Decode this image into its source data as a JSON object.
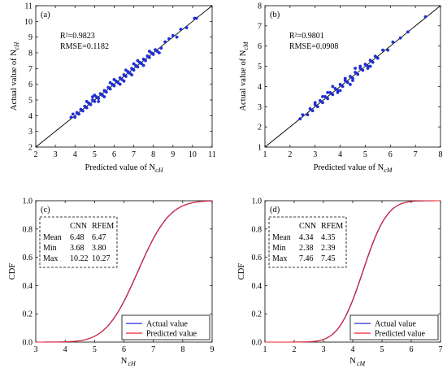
{
  "chart_data": [
    {
      "type": "scatter",
      "panel_label": "(a)",
      "xlabel": "Predicted value of N",
      "xlabel_sub": "cH",
      "ylabel": "Actual value of N",
      "ylabel_sub": "cH",
      "xlim": [
        2,
        11
      ],
      "ylim": [
        2,
        11
      ],
      "xticks": [
        "2",
        "3",
        "4",
        "5",
        "6",
        "7",
        "8",
        "9",
        "10",
        "11"
      ],
      "yticks": [
        "2",
        "3",
        "4",
        "5",
        "6",
        "7",
        "8",
        "9",
        "10",
        "11"
      ],
      "stats": [
        "R²=0.9823",
        "RMSE=0.1182"
      ],
      "reference_line": "y = x",
      "point_color": "#1f2fd6",
      "points": [
        [
          3.8,
          3.9
        ],
        [
          3.9,
          4.1
        ],
        [
          4.0,
          3.9
        ],
        [
          4.1,
          4.2
        ],
        [
          4.2,
          4.1
        ],
        [
          4.3,
          4.4
        ],
        [
          4.4,
          4.3
        ],
        [
          4.5,
          4.6
        ],
        [
          4.6,
          4.5
        ],
        [
          4.7,
          4.8
        ],
        [
          4.8,
          4.7
        ],
        [
          4.9,
          5.0
        ],
        [
          5.0,
          4.9
        ],
        [
          5.1,
          5.2
        ],
        [
          5.2,
          5.1
        ],
        [
          5.3,
          5.4
        ],
        [
          5.4,
          5.3
        ],
        [
          5.5,
          5.6
        ],
        [
          5.6,
          5.5
        ],
        [
          5.7,
          5.8
        ],
        [
          5.8,
          5.7
        ],
        [
          5.9,
          6.0
        ],
        [
          6.0,
          5.9
        ],
        [
          6.1,
          6.2
        ],
        [
          6.2,
          6.1
        ],
        [
          6.3,
          6.4
        ],
        [
          6.4,
          6.3
        ],
        [
          6.5,
          6.6
        ],
        [
          6.6,
          6.5
        ],
        [
          6.7,
          6.8
        ],
        [
          6.8,
          6.7
        ],
        [
          6.9,
          7.0
        ],
        [
          7.0,
          6.9
        ],
        [
          7.1,
          7.2
        ],
        [
          7.2,
          7.1
        ],
        [
          7.3,
          7.4
        ],
        [
          7.4,
          7.3
        ],
        [
          7.5,
          7.6
        ],
        [
          7.6,
          7.5
        ],
        [
          7.7,
          7.8
        ],
        [
          7.8,
          7.7
        ],
        [
          7.9,
          8.0
        ],
        [
          8.0,
          7.9
        ],
        [
          8.1,
          8.2
        ],
        [
          8.2,
          8.1
        ],
        [
          8.4,
          8.3
        ],
        [
          8.6,
          8.7
        ],
        [
          8.8,
          8.9
        ],
        [
          9.0,
          9.1
        ],
        [
          9.2,
          9.0
        ],
        [
          9.4,
          9.5
        ],
        [
          9.7,
          9.6
        ],
        [
          10.1,
          10.2
        ],
        [
          10.2,
          10.2
        ],
        [
          5.0,
          5.3
        ],
        [
          5.5,
          5.2
        ],
        [
          6.0,
          6.3
        ],
        [
          6.5,
          6.2
        ],
        [
          7.0,
          7.3
        ],
        [
          7.5,
          7.2
        ],
        [
          4.6,
          4.9
        ],
        [
          5.8,
          6.1
        ],
        [
          6.3,
          6.0
        ],
        [
          6.9,
          6.6
        ],
        [
          7.8,
          8.1
        ],
        [
          8.3,
          8.0
        ],
        [
          5.2,
          4.9
        ],
        [
          6.6,
          6.9
        ],
        [
          7.2,
          7.5
        ],
        [
          4.9,
          5.2
        ]
      ]
    },
    {
      "type": "scatter",
      "panel_label": "(b)",
      "xlabel": "Predicted value of N",
      "xlabel_sub": "cM",
      "ylabel": "Actual value of N",
      "ylabel_sub": "cM",
      "xlim": [
        1,
        8
      ],
      "ylim": [
        1,
        8
      ],
      "xticks": [
        "1",
        "2",
        "3",
        "4",
        "5",
        "6",
        "7",
        "8"
      ],
      "yticks": [
        "1",
        "2",
        "3",
        "4",
        "5",
        "6",
        "7",
        "8"
      ],
      "stats": [
        "R²=0.9801",
        "RMSE=0.0908"
      ],
      "reference_line": "y = x",
      "point_color": "#1f2fd6",
      "points": [
        [
          2.4,
          2.4
        ],
        [
          2.5,
          2.6
        ],
        [
          2.7,
          2.6
        ],
        [
          2.8,
          2.9
        ],
        [
          2.9,
          2.8
        ],
        [
          3.0,
          3.1
        ],
        [
          3.1,
          3.0
        ],
        [
          3.2,
          3.3
        ],
        [
          3.3,
          3.2
        ],
        [
          3.4,
          3.5
        ],
        [
          3.5,
          3.4
        ],
        [
          3.6,
          3.7
        ],
        [
          3.7,
          3.6
        ],
        [
          3.8,
          3.9
        ],
        [
          3.9,
          3.8
        ],
        [
          4.0,
          4.1
        ],
        [
          4.1,
          4.0
        ],
        [
          4.2,
          4.3
        ],
        [
          4.3,
          4.2
        ],
        [
          4.4,
          4.5
        ],
        [
          4.5,
          4.4
        ],
        [
          4.6,
          4.7
        ],
        [
          4.7,
          4.6
        ],
        [
          4.8,
          4.9
        ],
        [
          4.9,
          4.8
        ],
        [
          5.0,
          5.1
        ],
        [
          5.1,
          5.0
        ],
        [
          5.2,
          5.3
        ],
        [
          5.3,
          5.2
        ],
        [
          5.4,
          5.5
        ],
        [
          5.5,
          5.4
        ],
        [
          5.7,
          5.8
        ],
        [
          5.9,
          5.8
        ],
        [
          6.1,
          6.2
        ],
        [
          6.4,
          6.4
        ],
        [
          6.7,
          6.7
        ],
        [
          7.4,
          7.45
        ],
        [
          3.5,
          3.7
        ],
        [
          3.9,
          3.7
        ],
        [
          4.2,
          4.4
        ],
        [
          4.5,
          4.3
        ],
        [
          4.8,
          5.0
        ],
        [
          5.1,
          4.9
        ],
        [
          3.3,
          3.5
        ],
        [
          4.0,
          3.8
        ],
        [
          4.6,
          4.9
        ],
        [
          3.7,
          4.0
        ],
        [
          4.4,
          4.1
        ],
        [
          5.2,
          5.0
        ],
        [
          3.0,
          3.2
        ]
      ]
    },
    {
      "type": "line",
      "panel_label": "(c)",
      "xlabel": "N",
      "xlabel_sub": "cH",
      "ylabel": "CDF",
      "xlim": [
        3,
        9
      ],
      "ylim": [
        0,
        1
      ],
      "xticks": [
        "3",
        "4",
        "5",
        "6",
        "7",
        "8",
        "9"
      ],
      "yticks": [
        "0.0",
        "0.2",
        "0.4",
        "0.6",
        "0.8",
        "1.0"
      ],
      "table": {
        "header": [
          "",
          "CNN",
          "RFEM"
        ],
        "rows": [
          [
            "Mean",
            "6.48",
            "6.47"
          ],
          [
            "Min",
            "3.68",
            "3.80"
          ],
          [
            "Max",
            "10.22",
            "10.27"
          ]
        ]
      },
      "legend": "bottom-right",
      "series": [
        {
          "name": "Actual value",
          "color": "#1f2fd6",
          "mean": 6.47,
          "std": 0.85
        },
        {
          "name": "Predicted value",
          "color": "#e8232b",
          "mean": 6.48,
          "std": 0.85
        }
      ]
    },
    {
      "type": "line",
      "panel_label": "(d)",
      "xlabel": "N",
      "xlabel_sub": "cM",
      "ylabel": "CDF",
      "xlim": [
        1,
        7
      ],
      "ylim": [
        0,
        1
      ],
      "xticks": [
        "1",
        "2",
        "3",
        "4",
        "5",
        "6",
        "7"
      ],
      "yticks": [
        "0.0",
        "0.2",
        "0.4",
        "0.6",
        "0.8",
        "1.0"
      ],
      "table": {
        "header": [
          "",
          "CNN",
          "RFEM"
        ],
        "rows": [
          [
            "Mean",
            "4.34",
            "4.35"
          ],
          [
            "Min",
            "2.38",
            "2.39"
          ],
          [
            "Max",
            "7.46",
            "7.45"
          ]
        ]
      },
      "legend": "bottom-right",
      "series": [
        {
          "name": "Actual value",
          "color": "#1f2fd6",
          "mean": 4.35,
          "std": 0.65
        },
        {
          "name": "Predicted value",
          "color": "#e8232b",
          "mean": 4.34,
          "std": 0.65
        }
      ]
    }
  ]
}
